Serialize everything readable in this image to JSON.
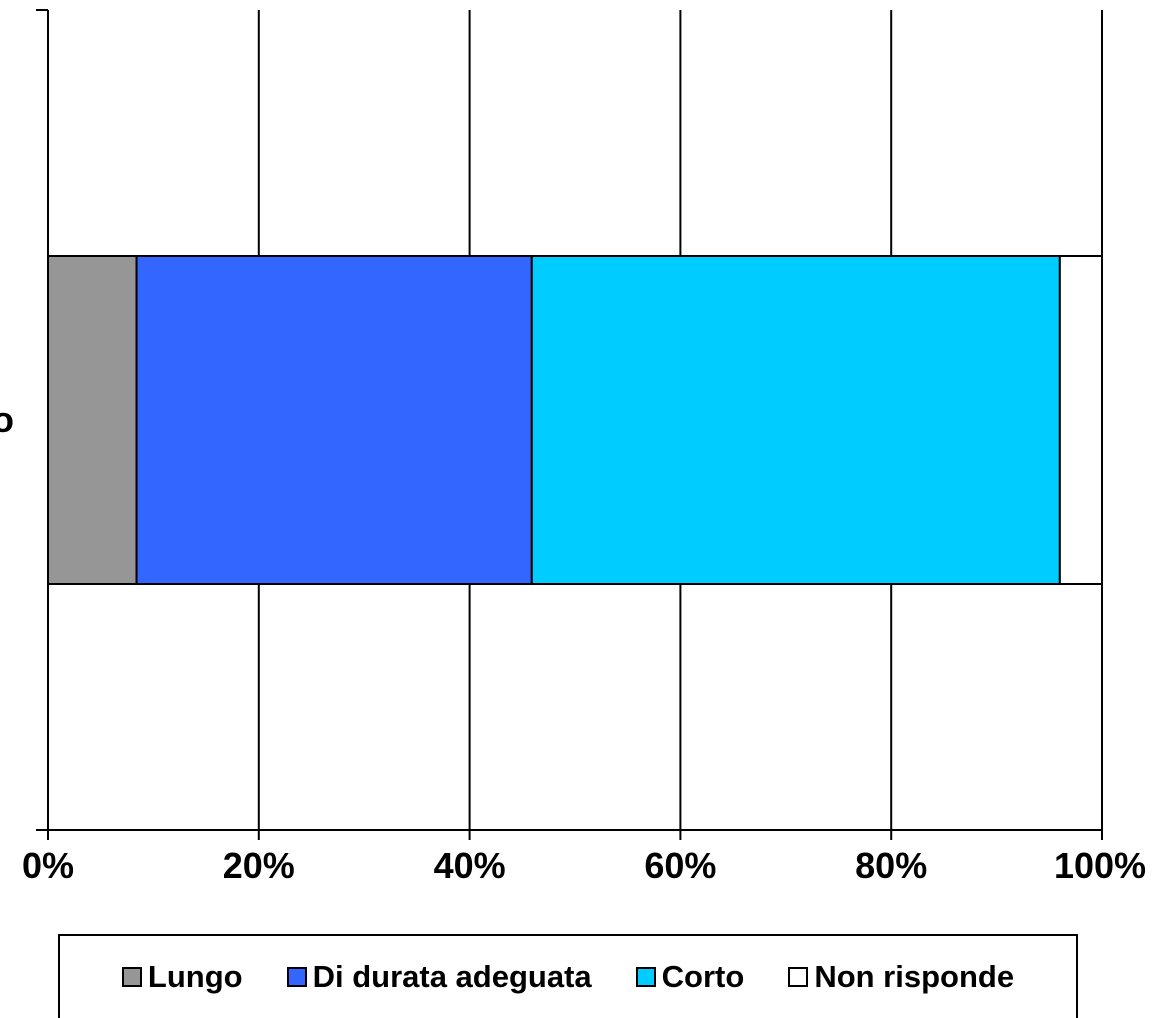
{
  "chart_data": {
    "type": "bar",
    "orientation": "horizontal",
    "stacked": "percent",
    "categories": [
      "o"
    ],
    "series": [
      {
        "name": "Lungo",
        "values": [
          8.4
        ],
        "color": "#969696"
      },
      {
        "name": "Di durata adeguata",
        "values": [
          37.5
        ],
        "color": "#3366FF"
      },
      {
        "name": "Corto",
        "values": [
          50.1
        ],
        "color": "#00CCFF"
      },
      {
        "name": "Non risponde",
        "values": [
          4.0
        ],
        "color": "#FFFFFF"
      }
    ],
    "xlim": [
      0,
      100
    ],
    "x_ticks": [
      "0%",
      "20%",
      "40%",
      "60%",
      "80%",
      "100%"
    ],
    "grid": true,
    "legend_position": "bottom",
    "title": "",
    "xlabel": "",
    "ylabel": ""
  }
}
